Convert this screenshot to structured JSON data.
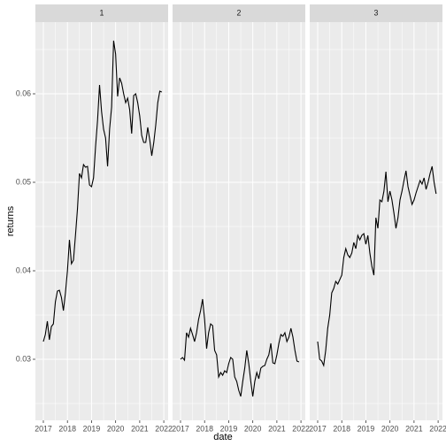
{
  "chart_data": {
    "type": "line",
    "xlabel": "date",
    "ylabel": "returns",
    "x": [
      2017.0,
      2017.0833,
      2017.1667,
      2017.25,
      2017.3333,
      2017.4167,
      2017.5,
      2017.5833,
      2017.6667,
      2017.75,
      2017.8333,
      2017.9167,
      2018.0,
      2018.0833,
      2018.1667,
      2018.25,
      2018.3333,
      2018.4167,
      2018.5,
      2018.5833,
      2018.6667,
      2018.75,
      2018.8333,
      2018.9167,
      2019.0,
      2019.0833,
      2019.1667,
      2019.25,
      2019.3333,
      2019.4167,
      2019.5,
      2019.5833,
      2019.6667,
      2019.75,
      2019.8333,
      2019.9167,
      2020.0,
      2020.0833,
      2020.1667,
      2020.25,
      2020.3333,
      2020.4167,
      2020.5,
      2020.5833,
      2020.6667,
      2020.75,
      2020.8333,
      2020.9167,
      2021.0,
      2021.0833,
      2021.1667,
      2021.25,
      2021.3333,
      2021.4167,
      2021.5,
      2021.5833,
      2021.6667,
      2021.75,
      2021.8333,
      2021.9167
    ],
    "series": [
      {
        "name": "1",
        "color": "#000000",
        "values": [
          0.032,
          0.0328,
          0.0343,
          0.0322,
          0.0337,
          0.034,
          0.0365,
          0.0377,
          0.0378,
          0.037,
          0.0355,
          0.0375,
          0.04,
          0.0435,
          0.0408,
          0.0412,
          0.044,
          0.047,
          0.051,
          0.0505,
          0.052,
          0.0517,
          0.0518,
          0.0497,
          0.0495,
          0.0505,
          0.054,
          0.057,
          0.061,
          0.058,
          0.056,
          0.055,
          0.0518,
          0.056,
          0.0585,
          0.066,
          0.0645,
          0.0597,
          0.0618,
          0.0612,
          0.06,
          0.059,
          0.0595,
          0.0582,
          0.0555,
          0.0598,
          0.06,
          0.059,
          0.0575,
          0.0553,
          0.0545,
          0.0545,
          0.0562,
          0.0548,
          0.053,
          0.0545,
          0.0565,
          0.059,
          0.0603,
          0.0602
        ]
      },
      {
        "name": "2",
        "color": "#000000",
        "values": [
          0.03,
          0.0302,
          0.0299,
          0.033,
          0.0325,
          0.0335,
          0.0328,
          0.032,
          0.033,
          0.0345,
          0.0355,
          0.0368,
          0.0345,
          0.0312,
          0.033,
          0.034,
          0.0338,
          0.031,
          0.0305,
          0.028,
          0.0285,
          0.0282,
          0.0287,
          0.0285,
          0.0295,
          0.0302,
          0.03,
          0.028,
          0.0275,
          0.0265,
          0.0258,
          0.0275,
          0.029,
          0.031,
          0.0295,
          0.0275,
          0.0258,
          0.0275,
          0.0285,
          0.0278,
          0.029,
          0.0292,
          0.0293,
          0.03,
          0.0305,
          0.0318,
          0.0296,
          0.0295,
          0.0305,
          0.0318,
          0.0328,
          0.0326,
          0.033,
          0.032,
          0.0325,
          0.0335,
          0.0325,
          0.031,
          0.0298,
          0.0297
        ]
      },
      {
        "name": "3",
        "color": "#000000",
        "values": [
          0.032,
          0.03,
          0.0298,
          0.0293,
          0.031,
          0.0335,
          0.035,
          0.0375,
          0.038,
          0.0388,
          0.0385,
          0.039,
          0.0395,
          0.0415,
          0.0425,
          0.0418,
          0.0415,
          0.042,
          0.0432,
          0.0425,
          0.044,
          0.0435,
          0.044,
          0.0442,
          0.043,
          0.044,
          0.042,
          0.0405,
          0.0395,
          0.046,
          0.0448,
          0.048,
          0.0478,
          0.049,
          0.0512,
          0.0478,
          0.049,
          0.048,
          0.0465,
          0.0448,
          0.046,
          0.048,
          0.049,
          0.0502,
          0.0513,
          0.0495,
          0.0485,
          0.0475,
          0.048,
          0.0488,
          0.0495,
          0.0502,
          0.0498,
          0.0505,
          0.0492,
          0.05,
          0.051,
          0.0518,
          0.05,
          0.0487
        ]
      }
    ],
    "xlim": [
      2016.67,
      2022.18
    ],
    "xticks": [
      2017,
      2018,
      2019,
      2020,
      2021,
      2022
    ],
    "ylim": [
      0.0231,
      0.0681
    ],
    "yticks": [
      0.03,
      0.04,
      0.05,
      0.06
    ],
    "grid": true
  }
}
